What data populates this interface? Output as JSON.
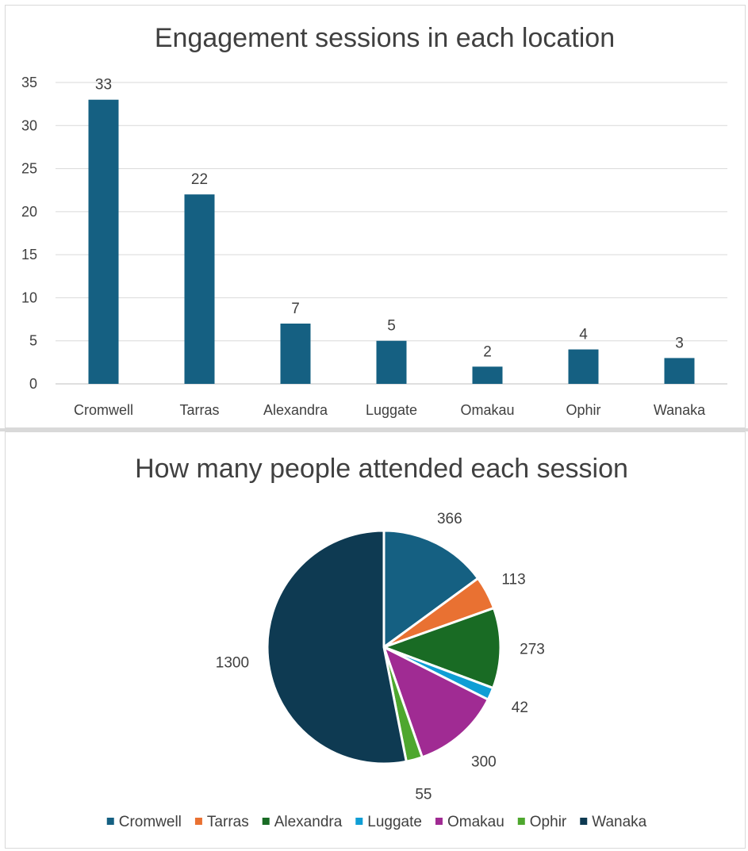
{
  "chart_data": [
    {
      "type": "bar",
      "title": "Engagement sessions in each location",
      "categories": [
        "Cromwell",
        "Tarras",
        "Alexandra",
        "Luggate",
        "Omakau",
        "Ophir",
        "Wanaka"
      ],
      "values": [
        33,
        22,
        7,
        5,
        2,
        4,
        3
      ],
      "ylim": [
        0,
        35
      ],
      "yticks": [
        0,
        5,
        10,
        15,
        20,
        25,
        30,
        35
      ],
      "grid": true,
      "legend": "none",
      "color": "#156082"
    },
    {
      "type": "pie",
      "title": "How many people attended each session",
      "categories": [
        "Cromwell",
        "Tarras",
        "Alexandra",
        "Luggate",
        "Omakau",
        "Ophir",
        "Wanaka"
      ],
      "values": [
        366,
        113,
        273,
        42,
        300,
        55,
        1300
      ],
      "colors": [
        "#156082",
        "#E97132",
        "#196B24",
        "#0F9ED5",
        "#A02B93",
        "#4EA72E",
        "#0E3A52"
      ],
      "legend": "bottom"
    }
  ]
}
